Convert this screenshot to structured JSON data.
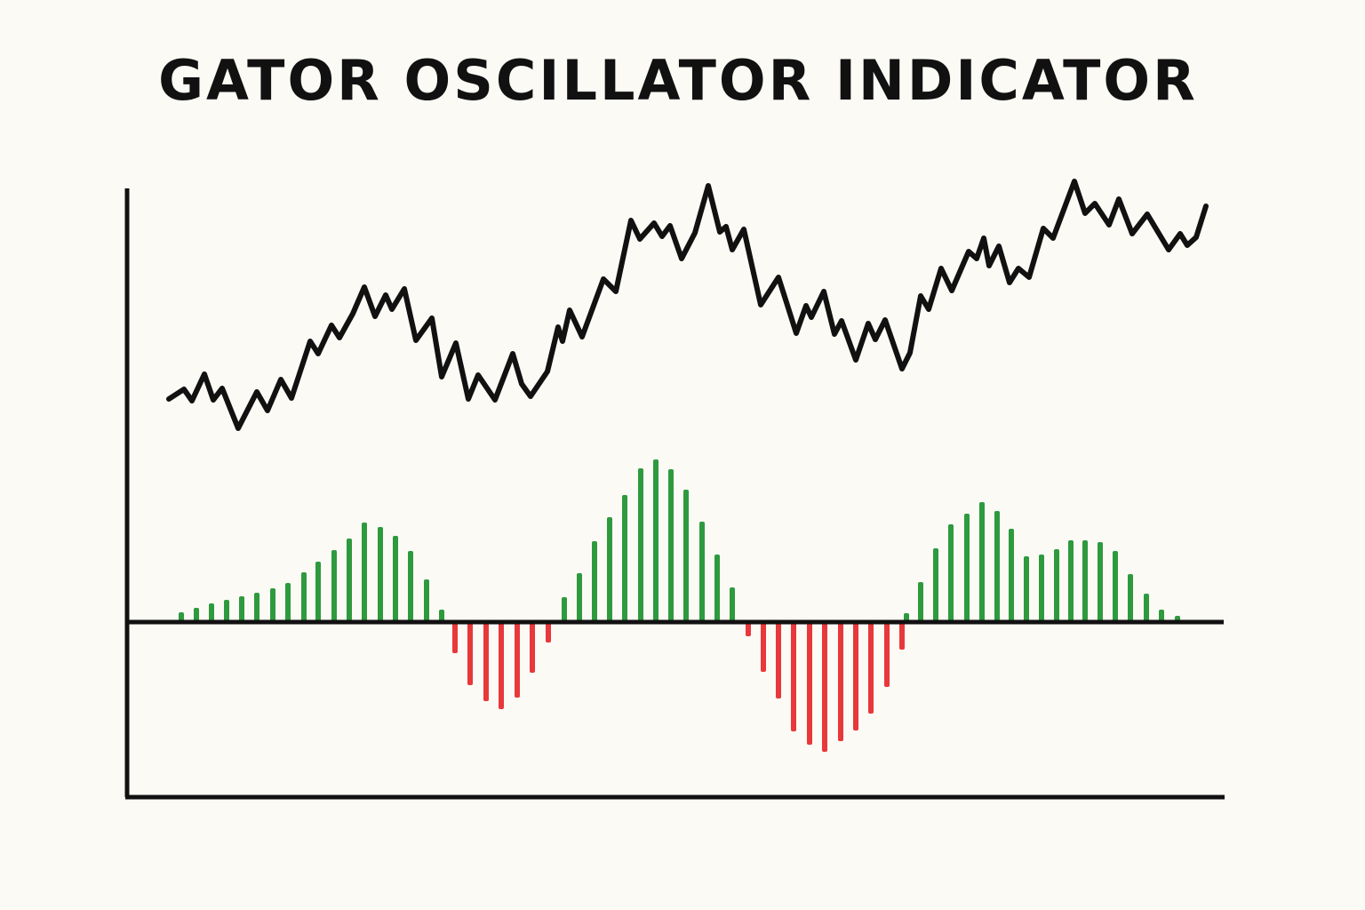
{
  "chart_data": [
    {
      "type": "line",
      "title": "GATOR OSCILLATOR INDICATOR",
      "color": "#111111",
      "xlim": [
        0,
        1234
      ],
      "ylim": [
        0,
        685
      ],
      "x": [
        47,
        64,
        73,
        87,
        97,
        107,
        125,
        146,
        158,
        173,
        185,
        206,
        215,
        230,
        239,
        254,
        267,
        279,
        291,
        298,
        312,
        325,
        343,
        354,
        370,
        384,
        395,
        414,
        434,
        444,
        454,
        473,
        485,
        490,
        498,
        512,
        536,
        550,
        567,
        577,
        593,
        602,
        611,
        624,
        639,
        654,
        667,
        674,
        681,
        694,
        713,
        733,
        753,
        764,
        770,
        784,
        796,
        804,
        820,
        834,
        842,
        853,
        872,
        881,
        893,
        902,
        916,
        928,
        947,
        956,
        964,
        970,
        981,
        993,
        1003,
        1015,
        1031,
        1042,
        1066,
        1078,
        1089,
        1105,
        1116,
        1131,
        1148,
        1172,
        1185,
        1193,
        1203,
        1214
      ],
      "values": [
        448,
        459,
        446,
        476,
        447,
        460,
        415,
        456,
        435,
        470,
        449,
        513,
        499,
        531,
        517,
        544,
        574,
        541,
        565,
        549,
        572,
        514,
        539,
        473,
        511,
        448,
        475,
        447,
        499,
        465,
        451,
        479,
        529,
        513,
        548,
        518,
        583,
        569,
        649,
        628,
        646,
        631,
        643,
        606,
        635,
        688,
        636,
        642,
        616,
        639,
        554,
        585,
        522,
        553,
        540,
        569,
        521,
        536,
        492,
        533,
        515,
        537,
        482,
        500,
        564,
        549,
        595,
        570,
        614,
        606,
        629,
        598,
        620,
        579,
        595,
        585,
        640,
        629,
        693,
        657,
        668,
        644,
        673,
        634,
        656,
        616,
        634,
        621,
        630,
        665
      ]
    },
    {
      "type": "bar",
      "positive_color": "#2e9a3e",
      "negative_color": "#e8383a",
      "xlim": [
        0,
        1234
      ],
      "ylim": [
        -197,
        488
      ],
      "x": [
        61,
        78,
        95,
        112,
        129,
        146,
        164,
        181,
        199,
        215,
        233,
        250,
        267,
        285,
        302,
        319,
        337,
        354,
        369,
        386,
        404,
        421,
        439,
        456,
        474,
        492,
        509,
        526,
        543,
        560,
        578,
        595,
        612,
        629,
        647,
        664,
        681,
        699,
        716,
        733,
        750,
        768,
        785,
        803,
        820,
        837,
        855,
        872,
        877,
        893,
        910,
        927,
        945,
        962,
        979,
        995,
        1012,
        1029,
        1046,
        1062,
        1078,
        1095,
        1112,
        1129,
        1147,
        1164,
        1182
      ],
      "values": [
        11,
        16,
        21,
        25,
        29,
        33,
        38,
        44,
        56,
        68,
        81,
        94,
        112,
        107,
        97,
        80,
        48,
        14,
        -35,
        -71,
        -89,
        -98,
        -85,
        -57,
        -23,
        28,
        55,
        91,
        118,
        143,
        173,
        183,
        172,
        149,
        113,
        76,
        39,
        -16,
        -56,
        -86,
        -123,
        -138,
        -146,
        -134,
        -122,
        -103,
        -73,
        -31,
        10,
        45,
        83,
        110,
        122,
        135,
        125,
        105,
        74,
        76,
        82,
        92,
        92,
        90,
        80,
        54,
        32,
        14,
        7
      ]
    }
  ]
}
